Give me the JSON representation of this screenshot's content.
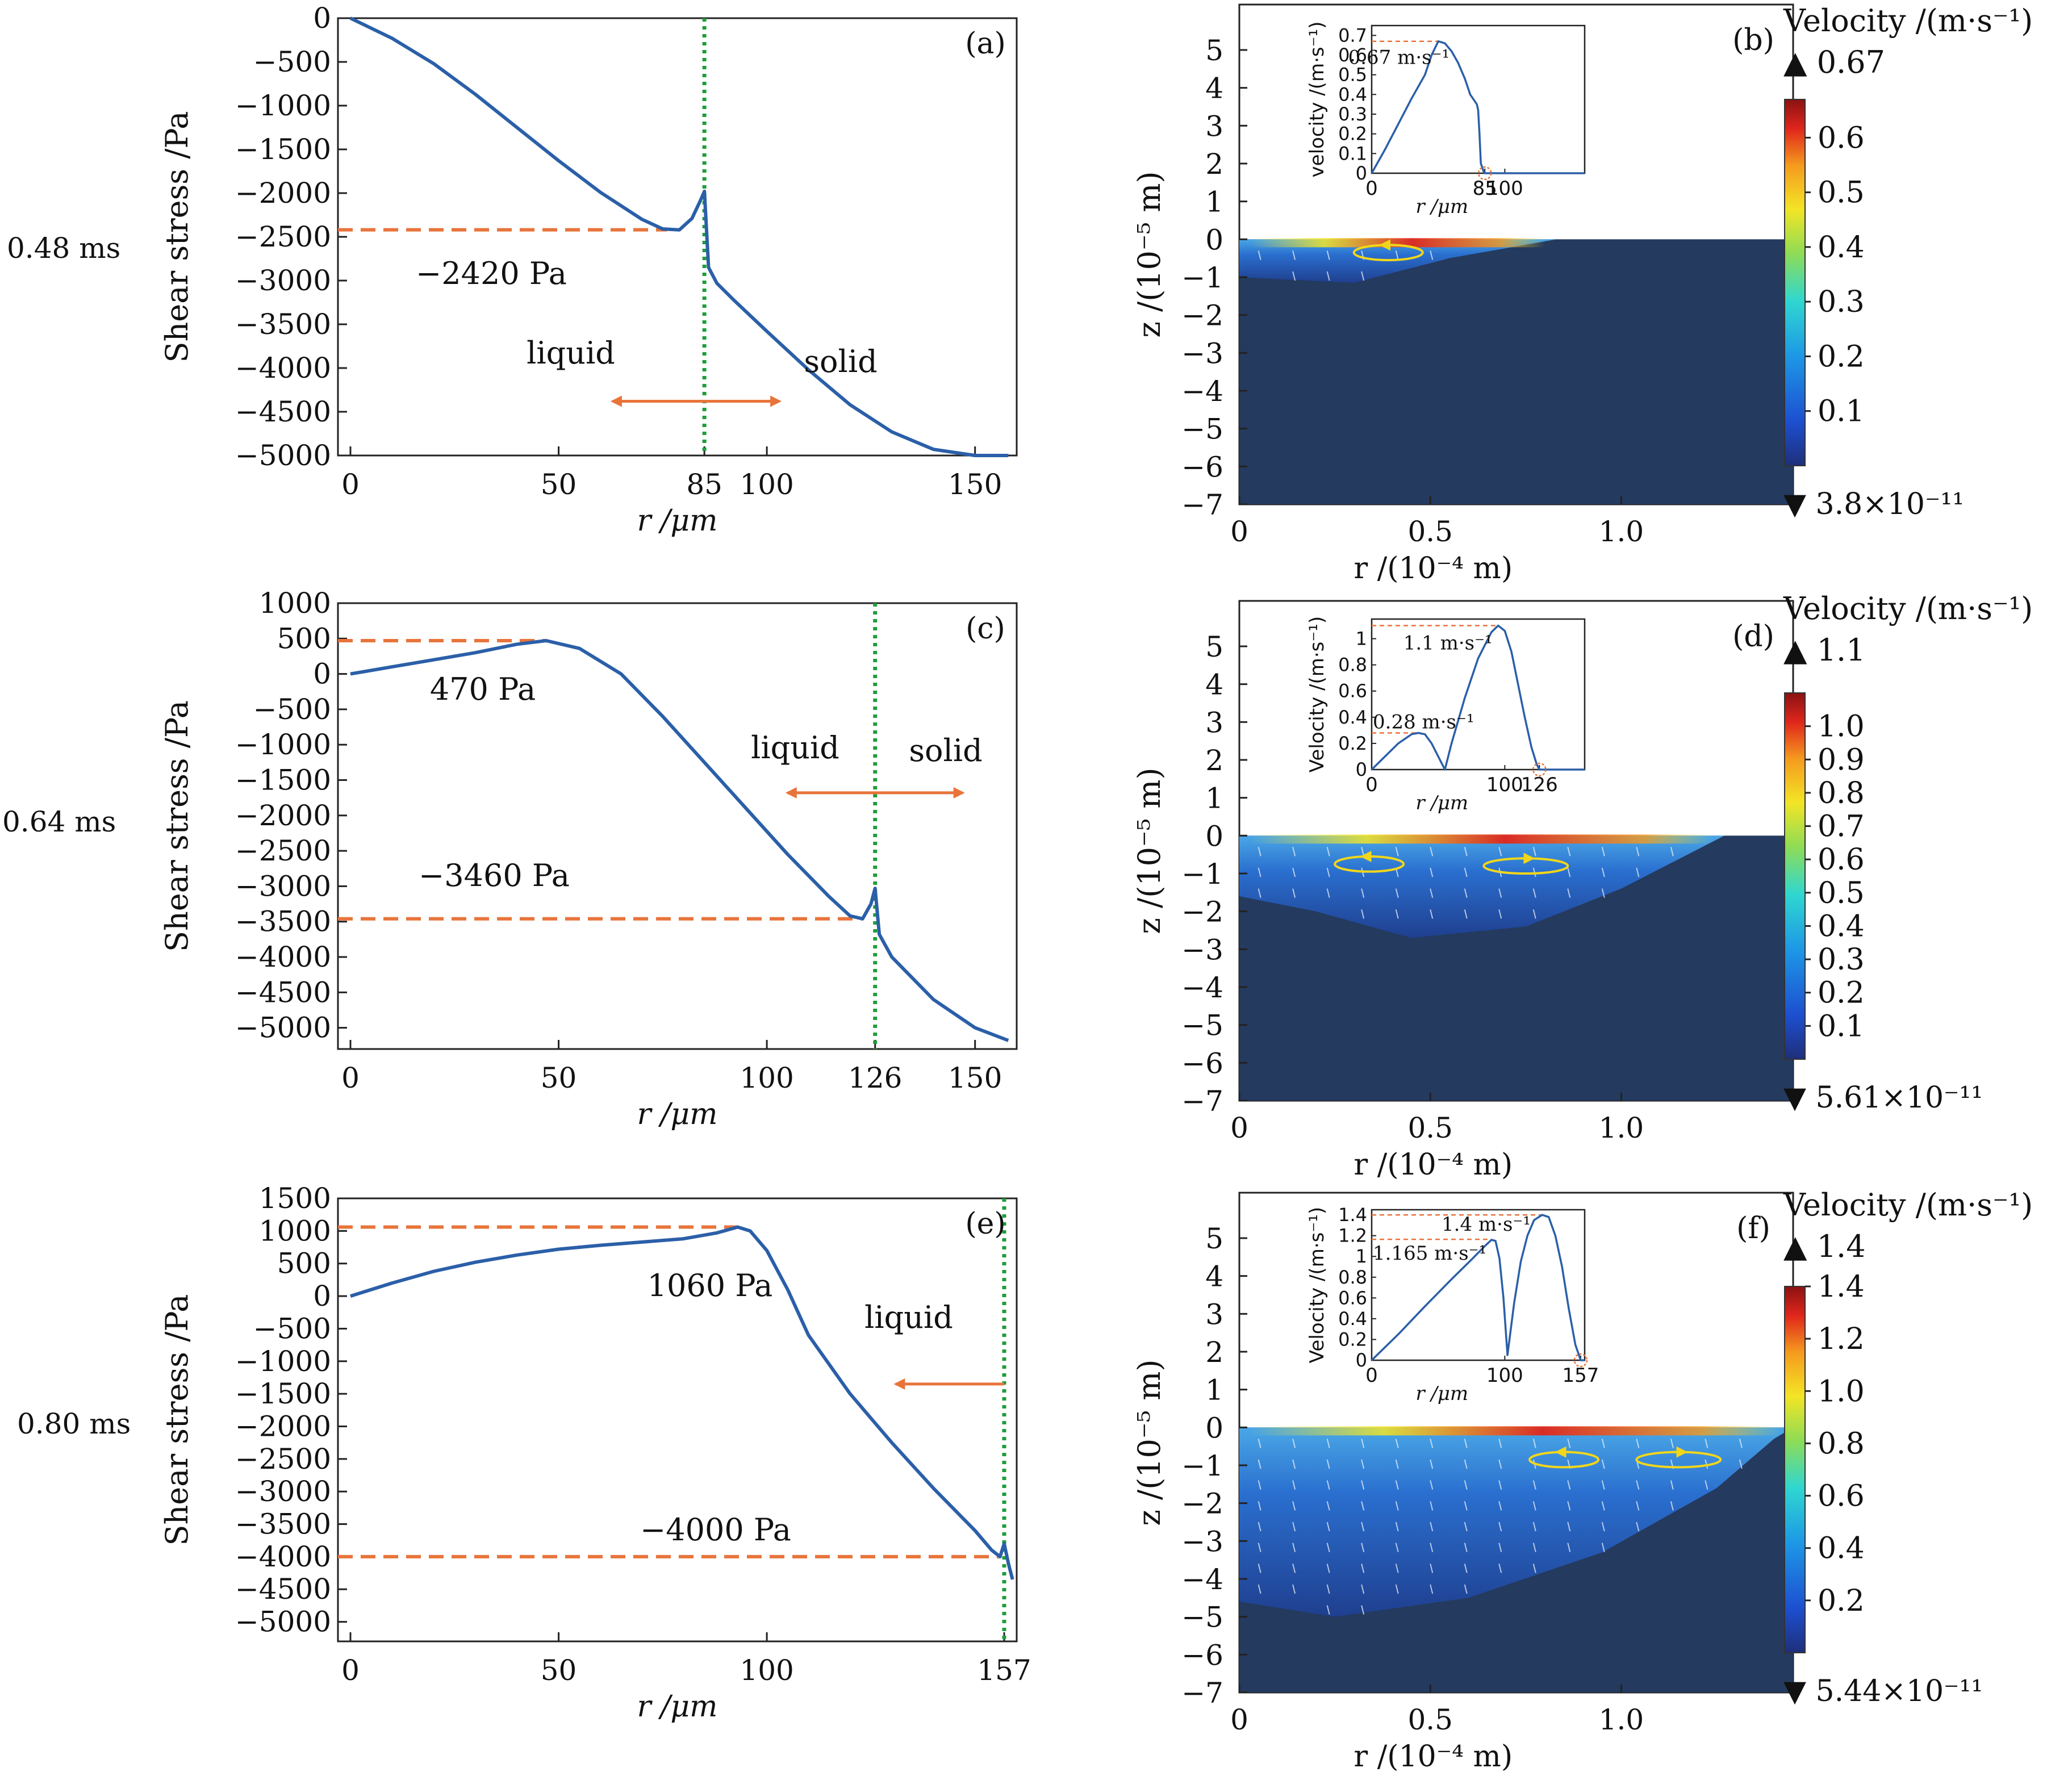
{
  "row_labels": [
    "0.48 ms",
    "0.64 ms",
    "0.80 ms"
  ],
  "colors": {
    "curve": "#2b5fa8",
    "guide": "#e8743b",
    "melt_line": "#1f9d3a",
    "solid_region": "#243a5e",
    "marker": "#f2d61a"
  },
  "chart_data": [
    {
      "id": "a",
      "type": "line",
      "panel_label": "(a)",
      "xlabel": "r /μm",
      "ylabel": "Shear stress /Pa",
      "xlim": [
        -3,
        160
      ],
      "ylim": [
        -5000,
        0
      ],
      "xticks": [
        0,
        50,
        85,
        100,
        150
      ],
      "yticks": [
        0,
        -500,
        -1000,
        -1500,
        -2000,
        -2500,
        -3000,
        -3500,
        -4000,
        -4500,
        -5000
      ],
      "x": [
        0,
        10,
        20,
        30,
        40,
        50,
        60,
        70,
        75,
        79,
        82,
        84,
        85,
        86,
        88,
        92,
        100,
        110,
        120,
        130,
        140,
        150,
        158
      ],
      "y": [
        0,
        -230,
        -520,
        -870,
        -1250,
        -1630,
        -1990,
        -2300,
        -2410,
        -2420,
        -2290,
        -2090,
        -1980,
        -2850,
        -3030,
        -3220,
        -3580,
        -4020,
        -4420,
        -4730,
        -4930,
        -5000,
        -5000
      ],
      "melt_x": 85,
      "guide_y": -2420,
      "guide_x_end": 76,
      "annotations": [
        "−2420 Pa",
        "liquid",
        "solid"
      ],
      "arrow": "both",
      "arrow_x": [
        63,
        103
      ],
      "arrow_y": -4380
    },
    {
      "id": "c",
      "type": "line",
      "panel_label": "(c)",
      "xlabel": "r /μm",
      "ylabel": "Shear stress /Pa",
      "xlim": [
        -3,
        160
      ],
      "ylim": [
        -5300,
        1000
      ],
      "xticks": [
        0,
        50,
        100,
        126,
        150
      ],
      "yticks": [
        1000,
        500,
        0,
        -500,
        -1000,
        -1500,
        -2000,
        -2500,
        -3000,
        -3500,
        -4000,
        -4500,
        -5000
      ],
      "x": [
        0,
        10,
        20,
        30,
        40,
        47,
        55,
        65,
        75,
        85,
        95,
        105,
        115,
        120,
        123,
        125,
        126,
        127,
        130,
        135,
        140,
        150,
        158
      ],
      "y": [
        0,
        100,
        200,
        300,
        420,
        470,
        360,
        0,
        -600,
        -1250,
        -1900,
        -2550,
        -3150,
        -3420,
        -3460,
        -3250,
        -3030,
        -3680,
        -4000,
        -4300,
        -4600,
        -5000,
        -5180
      ],
      "melt_x": 126,
      "guide_y1": 470,
      "guide1_x_end": 47,
      "guide_y2": -3460,
      "guide2_x_end": 123,
      "annotations": [
        "470 Pa",
        "−3460 Pa",
        "liquid",
        "solid"
      ],
      "arrow": "both",
      "arrow_x": [
        105,
        147
      ],
      "arrow_y": -1680
    },
    {
      "id": "e",
      "type": "line",
      "panel_label": "(e)",
      "xlabel": "r /μm",
      "ylabel": "Shear stress /Pa",
      "xlim": [
        -3,
        160
      ],
      "ylim": [
        -5300,
        1500
      ],
      "xticks": [
        0,
        50,
        100,
        157
      ],
      "yticks": [
        1500,
        1000,
        500,
        0,
        -500,
        -1000,
        -1500,
        -2000,
        -2500,
        -3000,
        -3500,
        -4000,
        -4500,
        -5000
      ],
      "x": [
        0,
        10,
        20,
        30,
        40,
        50,
        60,
        70,
        80,
        88,
        93,
        96,
        100,
        105,
        110,
        120,
        130,
        140,
        150,
        154,
        156,
        157,
        158,
        159
      ],
      "y": [
        0,
        200,
        380,
        520,
        630,
        720,
        780,
        830,
        880,
        970,
        1060,
        1000,
        700,
        100,
        -600,
        -1500,
        -2250,
        -2950,
        -3600,
        -3900,
        -4000,
        -3800,
        -4100,
        -4350
      ],
      "melt_x": 157,
      "guide_y1": 1060,
      "guide1_x_end": 93,
      "guide_y2": -4000,
      "guide2_x_end": 156,
      "annotations": [
        "1060 Pa",
        "−4000 Pa",
        "liquid"
      ],
      "arrow": "left",
      "arrow_x": [
        131,
        157
      ],
      "arrow_y": -1350
    },
    {
      "id": "b",
      "type": "heatmap",
      "panel_label": "(b)",
      "xlabel": "r /(10⁻⁴ m)",
      "ylabel": "z /(10⁻⁵ m)",
      "xlim": [
        0,
        1.45
      ],
      "ylim": [
        -7,
        6.2
      ],
      "xticks": [
        0,
        0.5,
        1.0
      ],
      "xtick_labels": [
        "0",
        "0.5",
        "1.0"
      ],
      "yticks": [
        5,
        4,
        3,
        2,
        1,
        0,
        -1,
        -2,
        -3,
        -4,
        -5,
        -6,
        -7
      ],
      "pool_profile": [
        [
          0,
          0
        ],
        [
          0,
          -1.0
        ],
        [
          0.3,
          -1.15
        ],
        [
          0.55,
          -0.5
        ],
        [
          0.83,
          0
        ]
      ],
      "vortices": [
        [
          0.39,
          -0.35,
          0.09,
          0.2,
          -1
        ]
      ],
      "colorbar": {
        "title": "Velocity /(m·s⁻¹)",
        "max_label": "▲ 0.67",
        "min_label": "▼ 3.8×10⁻¹¹",
        "range": [
          0,
          0.67
        ],
        "ticks": [
          0.1,
          0.2,
          0.3,
          0.4,
          0.5,
          0.6
        ]
      },
      "inset": {
        "ylabel": "velocity /(m·s⁻¹)",
        "xlabel": "r /μm",
        "xlim": [
          0,
          160
        ],
        "ylim": [
          0,
          0.75
        ],
        "xticks": [
          0,
          85,
          100
        ],
        "yticks": [
          0,
          0.1,
          0.2,
          0.3,
          0.4,
          0.5,
          0.6,
          0.7
        ],
        "x": [
          0,
          10,
          20,
          30,
          40,
          45,
          50,
          55,
          60,
          65,
          70,
          74,
          77,
          79,
          80,
          81,
          82,
          84,
          85,
          86,
          100,
          130,
          160
        ],
        "y": [
          0,
          0.12,
          0.25,
          0.38,
          0.5,
          0.6,
          0.67,
          0.66,
          0.62,
          0.56,
          0.48,
          0.4,
          0.37,
          0.35,
          0.32,
          0.2,
          0.05,
          0.01,
          0,
          0,
          0,
          0,
          0
        ],
        "peak_label": "0.67 m·s⁻¹",
        "peak_y": 0.67,
        "peak_x": 50,
        "marker_x": 85
      }
    },
    {
      "id": "d",
      "type": "heatmap",
      "panel_label": "(d)",
      "xlabel": "r /(10⁻⁴ m)",
      "ylabel": "z /(10⁻⁵ m)",
      "xlim": [
        0,
        1.45
      ],
      "ylim": [
        -7,
        6.2
      ],
      "xticks": [
        0,
        0.5,
        1.0
      ],
      "xtick_labels": [
        "0",
        "0.5",
        "1.0"
      ],
      "yticks": [
        5,
        4,
        3,
        2,
        1,
        0,
        -1,
        -2,
        -3,
        -4,
        -5,
        -6,
        -7
      ],
      "pool_profile": [
        [
          0,
          0
        ],
        [
          0,
          -1.6
        ],
        [
          0.2,
          -2.0
        ],
        [
          0.45,
          -2.7
        ],
        [
          0.75,
          -2.4
        ],
        [
          1.0,
          -1.4
        ],
        [
          1.27,
          0
        ]
      ],
      "vortices": [
        [
          0.34,
          -0.75,
          0.09,
          0.2,
          -1
        ],
        [
          0.75,
          -0.8,
          0.11,
          0.2,
          1
        ]
      ],
      "colorbar": {
        "title": "Velocity /(m·s⁻¹)",
        "max_label": "▲ 1.1",
        "min_label": "▼ 5.61×10⁻¹¹",
        "range": [
          0,
          1.1
        ],
        "ticks": [
          0.1,
          0.2,
          0.3,
          0.4,
          0.5,
          0.6,
          0.7,
          0.8,
          0.9,
          1.0
        ]
      },
      "inset": {
        "ylabel": "Velocity /(m·s⁻¹)",
        "xlabel": "r /μm",
        "xlim": [
          0,
          160
        ],
        "ylim": [
          0,
          1.15
        ],
        "xticks": [
          0,
          100,
          126
        ],
        "yticks": [
          0,
          0.2,
          0.4,
          0.6,
          0.8,
          1.0
        ],
        "x": [
          0,
          10,
          20,
          30,
          35,
          40,
          45,
          50,
          55,
          60,
          70,
          80,
          90,
          95,
          100,
          105,
          110,
          115,
          120,
          124,
          126,
          130,
          160
        ],
        "y": [
          0,
          0.1,
          0.2,
          0.27,
          0.28,
          0.27,
          0.2,
          0.1,
          0,
          0.2,
          0.55,
          0.85,
          1.05,
          1.1,
          1.06,
          0.9,
          0.65,
          0.4,
          0.17,
          0.04,
          0,
          0,
          0
        ],
        "peak_label": "1.1 m·s⁻¹",
        "peak_y": 1.1,
        "peak_x": 95,
        "peak2_label": "0.28 m·s⁻¹",
        "peak2_y": 0.28,
        "peak2_x": 35,
        "marker_x": 126
      }
    },
    {
      "id": "f",
      "type": "heatmap",
      "panel_label": "(f)",
      "xlabel": "r /(10⁻⁴ m)",
      "ylabel": "z /(10⁻⁵ m)",
      "xlim": [
        0,
        1.45
      ],
      "ylim": [
        -7,
        6.2
      ],
      "xticks": [
        0,
        0.5,
        1.0
      ],
      "xtick_labels": [
        "0",
        "0.5",
        "1.0"
      ],
      "yticks": [
        5,
        4,
        3,
        2,
        1,
        0,
        -1,
        -2,
        -3,
        -4,
        -5,
        -6,
        -7
      ],
      "pool_profile": [
        [
          0,
          0
        ],
        [
          0,
          -4.6
        ],
        [
          0.25,
          -5.0
        ],
        [
          0.6,
          -4.5
        ],
        [
          0.95,
          -3.3
        ],
        [
          1.25,
          -1.6
        ],
        [
          1.4,
          -0.3
        ],
        [
          1.45,
          0
        ]
      ],
      "vortices": [
        [
          0.85,
          -0.85,
          0.09,
          0.2,
          -1
        ],
        [
          1.15,
          -0.85,
          0.11,
          0.2,
          1
        ]
      ],
      "colorbar": {
        "title": "Velocity /(m·s⁻¹)",
        "max_label": "▲ 1.4",
        "min_label": "▼ 5.44×10⁻¹¹",
        "range": [
          0,
          1.4
        ],
        "ticks": [
          0.2,
          0.4,
          0.6,
          0.8,
          1.0,
          1.2,
          1.4
        ]
      },
      "inset": {
        "ylabel": "Velocity /(m·s⁻¹)",
        "xlabel": "r /μm",
        "xlim": [
          0,
          160
        ],
        "ylim": [
          0,
          1.45
        ],
        "xticks": [
          0,
          100,
          157
        ],
        "yticks": [
          0,
          0.2,
          0.4,
          0.6,
          0.8,
          1.0,
          1.2,
          1.4
        ],
        "x": [
          0,
          20,
          40,
          60,
          75,
          85,
          90,
          93,
          96,
          99,
          102,
          107,
          112,
          117,
          122,
          128,
          133,
          138,
          143,
          148,
          153,
          157,
          160
        ],
        "y": [
          0,
          0.25,
          0.52,
          0.78,
          0.97,
          1.1,
          1.16,
          1.15,
          0.98,
          0.6,
          0.05,
          0.55,
          0.95,
          1.2,
          1.35,
          1.4,
          1.38,
          1.2,
          0.9,
          0.5,
          0.15,
          0,
          0
        ],
        "peak_label": "1.4 m·s⁻¹",
        "peak_y": 1.4,
        "peak_x": 128,
        "peak2_label": "1.165 m·s⁻¹",
        "peak2_y": 1.165,
        "peak2_x": 90,
        "marker_x": 157
      }
    }
  ]
}
